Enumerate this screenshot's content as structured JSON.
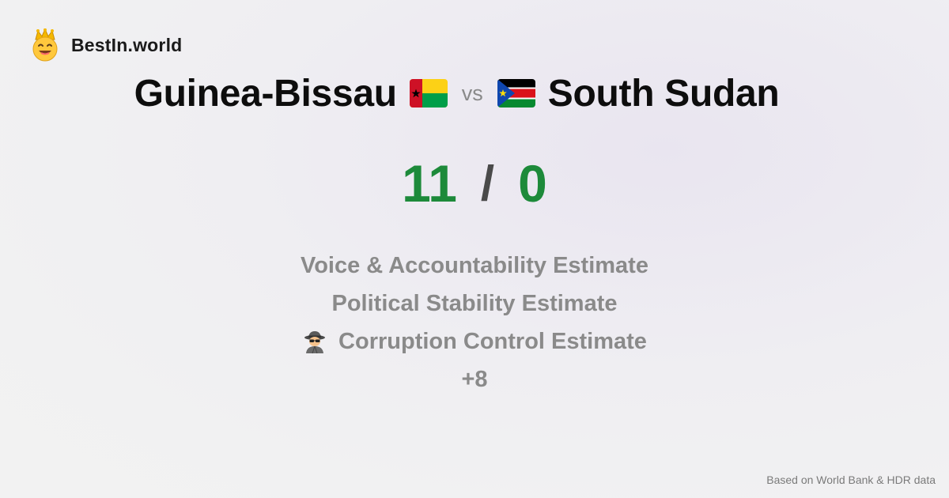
{
  "brand": {
    "name": "BestIn.world",
    "logo_icon": "crown-smiley-icon"
  },
  "comparison": {
    "left": {
      "name": "Guinea-Bissau",
      "flag_icon": "guinea-bissau-flag-icon",
      "score": "11"
    },
    "vs_label": "vs",
    "right": {
      "name": "South Sudan",
      "flag_icon": "south-sudan-flag-icon",
      "score": "0"
    },
    "separator": "/"
  },
  "criteria": [
    {
      "label": "Voice & Accountability Estimate"
    },
    {
      "label": "Political Stability Estimate"
    },
    {
      "label": "Corruption Control Estimate",
      "icon": "spy-icon"
    }
  ],
  "more_label": "+8",
  "footer": {
    "source": "Based on World Bank & HDR data"
  },
  "colors": {
    "score": "#1d8a3a",
    "muted": "#8a8a8a"
  }
}
